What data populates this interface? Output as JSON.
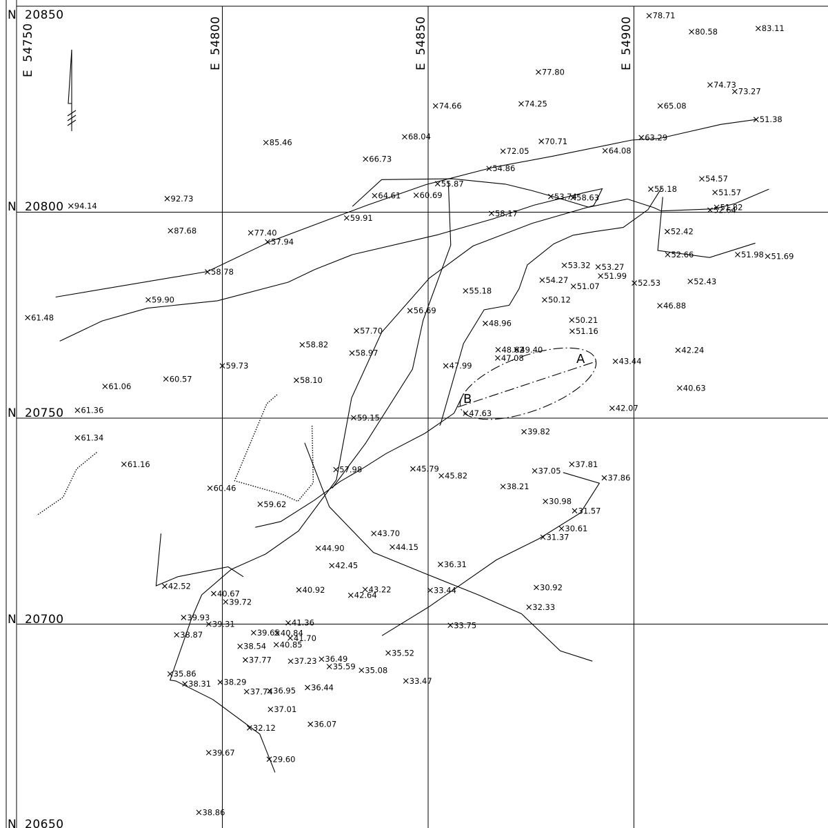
{
  "grid": {
    "northings": [
      {
        "label": "20850",
        "n": 20850
      },
      {
        "label": "20800",
        "n": 20800
      },
      {
        "label": "20750",
        "n": 20750
      },
      {
        "label": "20700",
        "n": 20700
      },
      {
        "label": "20650",
        "n": 20650
      }
    ],
    "eastings": [
      {
        "label": "54750",
        "e": 54750
      },
      {
        "label": "54800",
        "e": 54800
      },
      {
        "label": "54850",
        "e": 54850
      },
      {
        "label": "54900",
        "e": 54900
      }
    ],
    "n_prefix": "N",
    "e_prefix": "E"
  },
  "points": [
    {
      "e": 54903.7,
      "n": 20847.7,
      "v": "78.71"
    },
    {
      "e": 54914.0,
      "n": 20843.8,
      "v": "80.58"
    },
    {
      "e": 54930.2,
      "n": 20844.6,
      "v": "83.11"
    },
    {
      "e": 54876.8,
      "n": 20834.0,
      "v": "77.80"
    },
    {
      "e": 54918.5,
      "n": 20830.9,
      "v": "74.73"
    },
    {
      "e": 54924.5,
      "n": 20829.3,
      "v": "73.27"
    },
    {
      "e": 54851.8,
      "n": 20825.8,
      "v": "74.66"
    },
    {
      "e": 54872.6,
      "n": 20826.3,
      "v": "74.25"
    },
    {
      "e": 54906.4,
      "n": 20825.8,
      "v": "65.08"
    },
    {
      "e": 54844.3,
      "n": 20818.3,
      "v": "68.04"
    },
    {
      "e": 54877.5,
      "n": 20817.2,
      "v": "70.71"
    },
    {
      "e": 54901.8,
      "n": 20818.1,
      "v": "63.29"
    },
    {
      "e": 54810.6,
      "n": 20816.9,
      "v": "85.46"
    },
    {
      "e": 54868.2,
      "n": 20814.8,
      "v": "72.05"
    },
    {
      "e": 54893.0,
      "n": 20814.9,
      "v": "64.08"
    },
    {
      "e": 54834.8,
      "n": 20812.9,
      "v": "66.73"
    },
    {
      "e": 54916.5,
      "n": 20808.1,
      "v": "54.57"
    },
    {
      "e": 54904.1,
      "n": 20805.6,
      "v": "55.18"
    },
    {
      "e": 54786.6,
      "n": 20803.3,
      "v": "92.73"
    },
    {
      "e": 54837.0,
      "n": 20804.0,
      "v": "64.61"
    },
    {
      "e": 54847.1,
      "n": 20804.1,
      "v": "60.69"
    },
    {
      "e": 54885.2,
      "n": 20803.5,
      "v": "58.63"
    },
    {
      "e": 54763.2,
      "n": 20801.5,
      "v": "94.14"
    },
    {
      "e": 54787.4,
      "n": 20795.5,
      "v": "87.68"
    },
    {
      "e": 54806.9,
      "n": 20795.0,
      "v": "77.40"
    },
    {
      "e": 54865.4,
      "n": 20799.7,
      "v": "58.17"
    },
    {
      "e": 54925.2,
      "n": 20789.7,
      "v": "51.98"
    },
    {
      "e": 54932.5,
      "n": 20789.3,
      "v": "51.69"
    },
    {
      "e": 54913.7,
      "n": 20783.2,
      "v": "52.43"
    },
    {
      "e": 54906.3,
      "n": 20777.3,
      "v": "46.88"
    },
    {
      "e": 54884.9,
      "n": 20773.8,
      "v": "50.21"
    },
    {
      "e": 54910.7,
      "n": 20766.5,
      "v": "42.24"
    },
    {
      "e": 54911.1,
      "n": 20757.3,
      "v": "40.63"
    },
    {
      "e": 54894.7,
      "n": 20752.4,
      "v": "42.07"
    },
    {
      "e": 54873.3,
      "n": 20746.7,
      "v": "39.82"
    },
    {
      "e": 54884.9,
      "n": 20738.8,
      "v": "37.81"
    },
    {
      "e": 54875.9,
      "n": 20737.2,
      "v": "37.05"
    },
    {
      "e": 54892.8,
      "n": 20735.5,
      "v": "37.86"
    },
    {
      "e": 54868.2,
      "n": 20733.4,
      "v": "38.21"
    },
    {
      "e": 54882.4,
      "n": 20723.2,
      "v": "30.61"
    },
    {
      "e": 54853.0,
      "n": 20714.5,
      "v": "36.31"
    },
    {
      "e": 54874.5,
      "n": 20704.1,
      "v": "32.33"
    },
    {
      "e": 54823.3,
      "n": 20718.4,
      "v": "44.90"
    },
    {
      "e": 54834.7,
      "n": 20708.4,
      "v": "43.22"
    },
    {
      "e": 54786.0,
      "n": 20709.2,
      "v": "42.52"
    },
    {
      "e": 54797.9,
      "n": 20707.4,
      "v": "40.67"
    },
    {
      "e": 54790.6,
      "n": 20701.6,
      "v": "39.93"
    },
    {
      "e": 54816.5,
      "n": 20696.6,
      "v": "41.70"
    },
    {
      "e": 54813.1,
      "n": 20695.0,
      "v": "40.85"
    },
    {
      "e": 54813.3,
      "n": 20697.8,
      "v": "40.84"
    },
    {
      "e": 54807.6,
      "n": 20697.9,
      "v": "39.65"
    },
    {
      "e": 54826.0,
      "n": 20689.7,
      "v": "35.59"
    },
    {
      "e": 54811.7,
      "n": 20679.3,
      "v": "37.01"
    },
    {
      "e": 54821.4,
      "n": 20675.7,
      "v": "36.07"
    },
    {
      "e": 54844.6,
      "n": 20686.2,
      "v": "33.47"
    },
    {
      "e": 54796.7,
      "n": 20668.8,
      "v": "39.67"
    },
    {
      "e": 54794.3,
      "n": 20654.3,
      "v": "38.86"
    },
    {
      "e": 54818.0,
      "n": 20759.2,
      "v": "58.10"
    }
  ],
  "lines": [
    {
      "style": "solid",
      "coords": [
        [
          54759.5,
          20779.4
        ],
        [
          54796.4,
          20785.6
        ],
        [
          54811.7,
          20792.9
        ],
        [
          54826.3,
          20798.4
        ],
        [
          54835.2,
          20801.7
        ],
        [
          54849.5,
          20806.7
        ],
        [
          54865.9,
          20810.9
        ],
        [
          54880.3,
          20813.6
        ],
        [
          54899.5,
          20817.5
        ],
        [
          54906.2,
          20817.9
        ],
        [
          54921.1,
          20821.3
        ],
        [
          54929.7,
          20822.5
        ]
      ]
    },
    {
      "style": "solid",
      "coords": [
        [
          54760.5,
          20768.7
        ],
        [
          54770.8,
          20773.6
        ],
        [
          54781.8,
          20776.7
        ],
        [
          54798.8,
          20778.5
        ],
        [
          54816.0,
          20783.0
        ],
        [
          54822.5,
          20786.1
        ],
        [
          54831.6,
          20789.7
        ],
        [
          54852.3,
          20794.5
        ],
        [
          54865.8,
          20798.4
        ],
        [
          54875.7,
          20801.7
        ],
        [
          54888.2,
          20804.8
        ],
        [
          54892.3,
          20805.7
        ],
        [
          54891.2,
          20803.4
        ],
        [
          54890.2,
          20801.6
        ],
        [
          54875.3,
          20797.3
        ],
        [
          54860.9,
          20791.8
        ],
        [
          54850.3,
          20784.0
        ],
        [
          54838.7,
          20770.8
        ],
        [
          54831.4,
          20754.9
        ],
        [
          54827.7,
          20735.0
        ],
        [
          54818.5,
          20722.6
        ],
        [
          54810.5,
          20717.0
        ],
        [
          54802.2,
          20713.3
        ],
        [
          54795.0,
          20707.1
        ],
        [
          54792.5,
          20701.3
        ],
        [
          54787.3,
          20686.4
        ],
        [
          54788.7,
          20686.2
        ],
        [
          54797.7,
          20681.7
        ],
        [
          54809.1,
          20673.3
        ],
        [
          54812.8,
          20664.0
        ]
      ]
    },
    {
      "style": "solid",
      "coords": [
        [
          54831.6,
          20801.4
        ],
        [
          54838.7,
          20807.9
        ],
        [
          54855.9,
          20808.1
        ],
        [
          54868.8,
          20806.8
        ],
        [
          54875.0,
          20805.3
        ],
        [
          54883.1,
          20803.0
        ],
        [
          54889.0,
          20801.2
        ],
        [
          54898.4,
          20803.2
        ],
        [
          54904.8,
          20801.1
        ],
        [
          54906.6,
          20800.3
        ],
        [
          54919.5,
          20800.8
        ],
        [
          54924.6,
          20802.1
        ],
        [
          54932.8,
          20805.6
        ]
      ]
    },
    {
      "style": "solid",
      "coords": [
        [
          54907.0,
          20803.7
        ],
        [
          54905.8,
          20790.7
        ],
        [
          54918.4,
          20789.0
        ],
        [
          54929.5,
          20792.5
        ]
      ]
    },
    {
      "style": "solid",
      "coords": [
        [
          54852.8,
          20748.2
        ],
        [
          54853.0,
          20748.5
        ],
        [
          54858.6,
          20768.1
        ],
        [
          54863.6,
          20776.3
        ],
        [
          54869.7,
          20777.4
        ],
        [
          54872.1,
          20781.4
        ],
        [
          54874.1,
          20787.2
        ],
        [
          54880.5,
          20792.3
        ],
        [
          54885.2,
          20794.4
        ],
        [
          54890.5,
          20795.3
        ],
        [
          54897.4,
          20796.3
        ],
        [
          54903.4,
          20800.6
        ],
        [
          54906.8,
          20806.0
        ]
      ]
    },
    {
      "style": "solid",
      "coords": [
        [
          54826.7,
          20733.0
        ],
        [
          54834.8,
          20743.9
        ],
        [
          54846.2,
          20761.9
        ],
        [
          54848.8,
          20773.8
        ],
        [
          54855.5,
          20792.0
        ],
        [
          54854.9,
          20807.4
        ]
      ]
    },
    {
      "style": "solid",
      "coords": [
        [
          54785.1,
          20722.0
        ],
        [
          54783.9,
          20709.3
        ],
        [
          54789.2,
          20711.5
        ],
        [
          54801.4,
          20713.9
        ],
        [
          54805.1,
          20711.5
        ]
      ]
    },
    {
      "style": "dotted",
      "coords": [
        [
          54813.3,
          20755.7
        ],
        [
          54810.8,
          20753.5
        ],
        [
          54803.0,
          20734.8
        ],
        [
          54814.8,
          20731.4
        ],
        [
          54818.3,
          20729.8
        ],
        [
          54822.1,
          20734.3
        ],
        [
          54821.8,
          20748.3
        ]
      ]
    },
    {
      "style": "dotted",
      "coords": [
        [
          54769.5,
          20741.7
        ],
        [
          54764.6,
          20737.7
        ],
        [
          54761.3,
          20730.8
        ],
        [
          54754.9,
          20726.4
        ]
      ]
    },
    {
      "style": "solid",
      "coords": [
        [
          54820.0,
          20744.0
        ],
        [
          54826.0,
          20728.5
        ],
        [
          54836.7,
          20717.4
        ],
        [
          54850.2,
          20711.9
        ],
        [
          54862.2,
          20707.1
        ],
        [
          54872.7,
          20702.5
        ],
        [
          54882.1,
          20693.5
        ],
        [
          54889.9,
          20691.0
        ]
      ]
    },
    {
      "style": "solid",
      "coords": [
        [
          54838.8,
          20697.2
        ],
        [
          54850.2,
          20704.2
        ],
        [
          54866.6,
          20715.6
        ],
        [
          54876.9,
          20720.7
        ],
        [
          54887.0,
          20727.0
        ],
        [
          54891.6,
          20734.2
        ],
        [
          54882.8,
          20736.8
        ]
      ]
    },
    {
      "style": "solid",
      "coords": [
        [
          54808.0,
          20723.5
        ],
        [
          54814.2,
          20724.9
        ],
        [
          54822.4,
          20730.1
        ],
        [
          54828.6,
          20734.6
        ],
        [
          54834.1,
          20737.8
        ],
        [
          54839.8,
          20741.4
        ],
        [
          54849.2,
          20746.3
        ],
        [
          54856.3,
          20751.2
        ],
        [
          54858.6,
          20755.9
        ]
      ]
    }
  ],
  "line_labels": [
    {
      "e": 54918.5,
      "n": 20800.5,
      "v": "52.64"
    },
    {
      "e": 54929.7,
      "n": 20822.5,
      "v": "51.38"
    },
    {
      "e": 54920.1,
      "n": 20801.2,
      "v": "51.82"
    },
    {
      "e": 54879.8,
      "n": 20803.8,
      "v": "53.74"
    },
    {
      "e": 54864.8,
      "n": 20810.6,
      "v": "54.86"
    },
    {
      "e": 54852.3,
      "n": 20806.9,
      "v": "55.87"
    },
    {
      "e": 54830.2,
      "n": 20798.6,
      "v": "59.91"
    },
    {
      "e": 54811.0,
      "n": 20792.8,
      "v": "57.94"
    },
    {
      "e": 54796.4,
      "n": 20785.5,
      "v": "58.78"
    },
    {
      "e": 54782.0,
      "n": 20778.7,
      "v": "59.90"
    },
    {
      "e": 54752.7,
      "n": 20774.4,
      "v": "61.48"
    },
    {
      "e": 54919.7,
      "n": 20804.8,
      "v": "51.57"
    },
    {
      "e": 54908.1,
      "n": 20795.3,
      "v": "52.42"
    },
    {
      "e": 54908.2,
      "n": 20789.7,
      "v": "52.66"
    },
    {
      "e": 54900.1,
      "n": 20782.8,
      "v": "52.53"
    },
    {
      "e": 54885.0,
      "n": 20771.1,
      "v": "51.16"
    },
    {
      "e": 54885.3,
      "n": 20782.0,
      "v": "51.07"
    },
    {
      "e": 54891.9,
      "n": 20784.5,
      "v": "51.99"
    },
    {
      "e": 54891.3,
      "n": 20786.7,
      "v": "53.27"
    },
    {
      "e": 54883.1,
      "n": 20787.1,
      "v": "53.32"
    },
    {
      "e": 54877.7,
      "n": 20783.5,
      "v": "54.27"
    },
    {
      "e": 54859.1,
      "n": 20780.9,
      "v": "55.18"
    },
    {
      "e": 54878.3,
      "n": 20778.7,
      "v": "50.12"
    },
    {
      "e": 54845.6,
      "n": 20776.1,
      "v": "56.69"
    },
    {
      "e": 54863.9,
      "n": 20773.0,
      "v": "48.96"
    },
    {
      "e": 54871.5,
      "n": 20766.6,
      "v": "49.40"
    },
    {
      "e": 54832.6,
      "n": 20771.2,
      "v": "57.70"
    },
    {
      "e": 54819.4,
      "n": 20767.8,
      "v": "58.82"
    },
    {
      "e": 54831.5,
      "n": 20765.8,
      "v": "58.97"
    },
    {
      "e": 54867.0,
      "n": 20766.6,
      "v": "48.62"
    },
    {
      "e": 54866.9,
      "n": 20764.6,
      "v": "47.08"
    },
    {
      "e": 54854.3,
      "n": 20762.7,
      "v": "47.99"
    },
    {
      "e": 54800.0,
      "n": 20762.7,
      "v": "59.73"
    },
    {
      "e": 54786.3,
      "n": 20759.5,
      "v": "60.57"
    },
    {
      "e": 54771.5,
      "n": 20757.7,
      "v": "61.06"
    },
    {
      "e": 54764.8,
      "n": 20751.9,
      "v": "61.36"
    },
    {
      "e": 54831.9,
      "n": 20750.1,
      "v": "59.15"
    },
    {
      "e": 54859.1,
      "n": 20751.2,
      "v": "47.63"
    },
    {
      "e": 54895.5,
      "n": 20763.8,
      "v": "43.44"
    },
    {
      "e": 54764.8,
      "n": 20745.2,
      "v": "61.34"
    },
    {
      "e": 54776.1,
      "n": 20738.8,
      "v": "61.16"
    },
    {
      "e": 54797.0,
      "n": 20733.0,
      "v": "60.46"
    },
    {
      "e": 54809.2,
      "n": 20729.1,
      "v": "59.62"
    },
    {
      "e": 54827.6,
      "n": 20737.5,
      "v": "57.98"
    },
    {
      "e": 54846.3,
      "n": 20737.7,
      "v": "45.79"
    },
    {
      "e": 54853.2,
      "n": 20736.0,
      "v": "45.82"
    },
    {
      "e": 54836.8,
      "n": 20722.0,
      "v": "43.70"
    },
    {
      "e": 54841.3,
      "n": 20718.7,
      "v": "44.15"
    },
    {
      "e": 54826.6,
      "n": 20714.2,
      "v": "42.45"
    },
    {
      "e": 54818.6,
      "n": 20708.3,
      "v": "40.92"
    },
    {
      "e": 54800.8,
      "n": 20705.4,
      "v": "39.72"
    },
    {
      "e": 54796.7,
      "n": 20700.0,
      "v": "39.31"
    },
    {
      "e": 54788.9,
      "n": 20697.4,
      "v": "38.87"
    },
    {
      "e": 54790.9,
      "n": 20685.5,
      "v": "38.31"
    },
    {
      "e": 54787.3,
      "n": 20687.9,
      "v": "35.86"
    },
    {
      "e": 54799.5,
      "n": 20685.9,
      "v": "38.29"
    },
    {
      "e": 54805.9,
      "n": 20683.6,
      "v": "37.74"
    },
    {
      "e": 54811.5,
      "n": 20683.8,
      "v": "36.95"
    },
    {
      "e": 54820.7,
      "n": 20684.6,
      "v": "36.44"
    },
    {
      "e": 54833.8,
      "n": 20688.8,
      "v": "35.08"
    },
    {
      "e": 54840.3,
      "n": 20693.0,
      "v": "35.52"
    },
    {
      "e": 54824.1,
      "n": 20691.5,
      "v": "36.49"
    },
    {
      "e": 54816.6,
      "n": 20691.0,
      "v": "37.23"
    },
    {
      "e": 54805.6,
      "n": 20691.3,
      "v": "37.77"
    },
    {
      "e": 54804.3,
      "n": 20694.6,
      "v": "38.54"
    },
    {
      "e": 54816.0,
      "n": 20700.3,
      "v": "41.36"
    },
    {
      "e": 54831.2,
      "n": 20707.0,
      "v": "42.64"
    },
    {
      "e": 54850.5,
      "n": 20708.2,
      "v": "33.44"
    },
    {
      "e": 54855.4,
      "n": 20699.7,
      "v": "33.75"
    },
    {
      "e": 54877.9,
      "n": 20721.1,
      "v": "31.37"
    },
    {
      "e": 54876.3,
      "n": 20708.9,
      "v": "30.92"
    },
    {
      "e": 54878.5,
      "n": 20729.8,
      "v": "30.98"
    },
    {
      "e": 54885.6,
      "n": 20727.5,
      "v": "31.57"
    },
    {
      "e": 54806.6,
      "n": 20674.8,
      "v": "32.12"
    },
    {
      "e": 54811.4,
      "n": 20667.2,
      "v": "29.60"
    }
  ],
  "section": {
    "a_label": "A",
    "b_label": "B",
    "a": {
      "e": 54891.2,
      "n": 20764.3
    },
    "b": {
      "e": 54857.4,
      "n": 20752.3
    }
  }
}
